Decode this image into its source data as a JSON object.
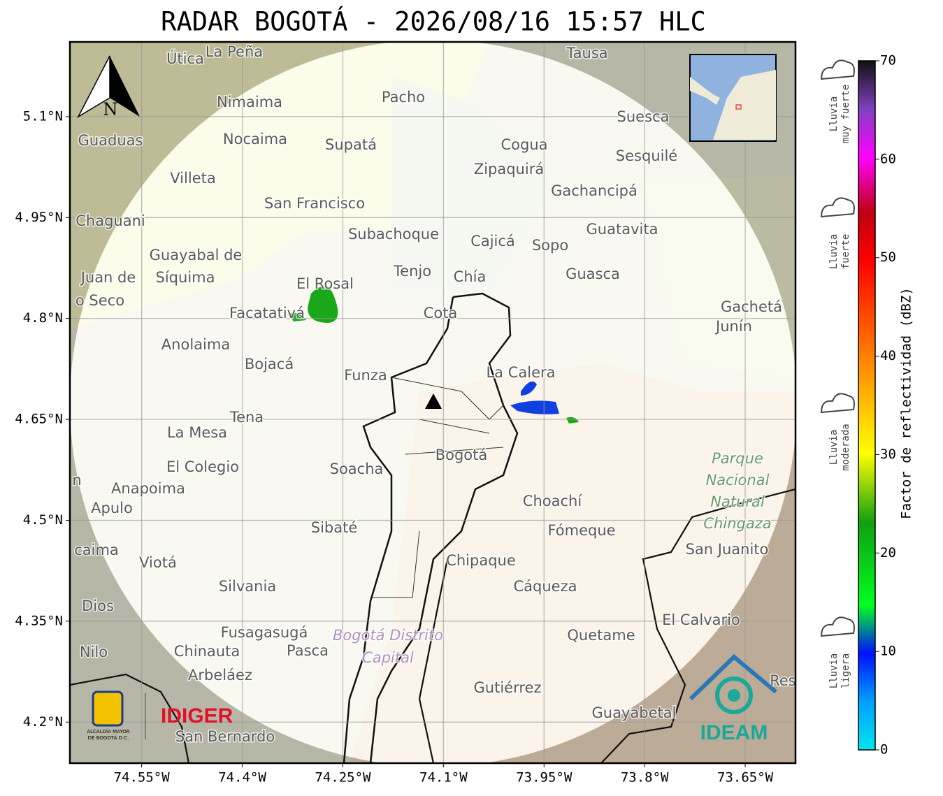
{
  "title": "RADAR BOGOTÁ - 2026/08/16 15:57 HLC",
  "map": {
    "lon_range": [
      -74.657,
      -73.575
    ],
    "lat_range": [
      4.139,
      5.211
    ],
    "lon_ticks": [
      {
        "value": -74.55,
        "label": "74.55°W"
      },
      {
        "value": -74.4,
        "label": "74.4°W"
      },
      {
        "value": -74.25,
        "label": "74.25°W"
      },
      {
        "value": -74.1,
        "label": "74.1°W"
      },
      {
        "value": -73.95,
        "label": "73.95°W"
      },
      {
        "value": -73.8,
        "label": "73.8°W"
      },
      {
        "value": -73.65,
        "label": "73.65°W"
      }
    ],
    "lat_ticks": [
      {
        "value": 5.1,
        "label": "5.1°N"
      },
      {
        "value": 4.95,
        "label": "4.95°N"
      },
      {
        "value": 4.8,
        "label": "4.8°N"
      },
      {
        "value": 4.65,
        "label": "4.65°N"
      },
      {
        "value": 4.5,
        "label": "4.5°N"
      },
      {
        "value": 4.35,
        "label": "4.35°N"
      },
      {
        "value": 4.2,
        "label": "4.2°N"
      }
    ],
    "north": "N",
    "places": [
      "Útica",
      "La Peña",
      "Tausa",
      "Pacho",
      "Nimaima",
      "Guaduas",
      "Nocaima",
      "Supatá",
      "Cogua",
      "Suesca",
      "Sesquilé",
      "Zipaquirá",
      "Villeta",
      "Gachancipá",
      "San Francisco",
      "Chaguani",
      "Guatavita",
      "Subachoque",
      "Cajicá",
      "Sopo",
      "Guayabal de",
      "Síquima",
      "Juan de",
      "Tenjo",
      "Chía",
      "Guasca",
      "El Rosal",
      "o Seco",
      "Facatativá",
      "Cota",
      "Gachetá",
      "Junín",
      "Anolaima",
      "Bojacá",
      "Funza",
      "La Calera",
      "Tena",
      "La Mesa",
      "El Colegio",
      "Soacha",
      "Bogotá",
      "Anapoima",
      "Apulo",
      "Choachí",
      "Sibaté",
      "Fómeque",
      "San Juanito",
      "caima",
      "Viotá",
      "Chipaque",
      "Silvania",
      "Cáqueza",
      "Dios",
      "El Calvario",
      "Fusagasugá",
      "Quetame",
      "Nilo",
      "Chinauta",
      "Pasca",
      "Arbeláez",
      "Gutiérrez",
      "Res",
      "Guayabetal",
      "San Bernardo",
      "n"
    ],
    "park": [
      "Parque",
      "Nacional",
      "Natural",
      "Chingaza"
    ],
    "district": [
      "Bogotá Distrito",
      "Capital"
    ]
  },
  "logos": {
    "alcaldia": [
      "ALCALDÍA MAYOR",
      "DE BOGOTÁ D.C."
    ],
    "idiger": "IDIGER",
    "ideam": "IDEAM"
  },
  "colorbar": {
    "label": "Factor de reflectividad (dBZ)",
    "range": [
      0,
      70
    ],
    "ticks": [
      0,
      10,
      20,
      30,
      40,
      50,
      60,
      70
    ]
  },
  "legend": [
    [
      "Lluvia",
      "muy fuerte"
    ],
    [
      "Lluvia",
      "fuerte"
    ],
    [
      "Lluvia",
      "moderada"
    ],
    [
      "Lluvia",
      "ligera"
    ]
  ]
}
